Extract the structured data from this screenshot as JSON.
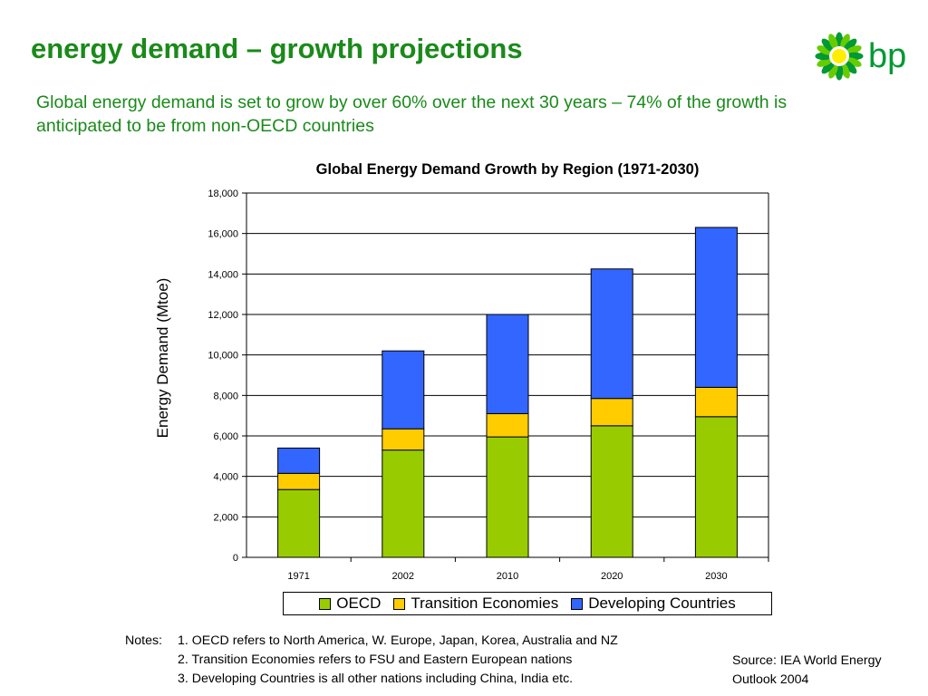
{
  "slide": {
    "title": "energy demand – growth projections",
    "subtitle": "Global energy demand is set to grow by over 60% over the next 30 years – 74% of the growth is anticipated to be from non-OECD countries",
    "logo_text": "bp"
  },
  "chart_data": {
    "type": "bar",
    "stacked": true,
    "title": "Global Energy Demand Growth by Region (1971-2030)",
    "xlabel": "",
    "ylabel": "Energy Demand (Mtoe)",
    "ylim": [
      0,
      18000
    ],
    "yticks": [
      "0",
      "2,000",
      "4,000",
      "6,000",
      "8,000",
      "10,000",
      "12,000",
      "14,000",
      "16,000",
      "18,000"
    ],
    "ytick_values": [
      0,
      2000,
      4000,
      6000,
      8000,
      10000,
      12000,
      14000,
      16000,
      18000
    ],
    "categories": [
      "1971",
      "2002",
      "2010",
      "2020",
      "2030"
    ],
    "series": [
      {
        "name": "OECD",
        "color": "#99cc00",
        "values": [
          3350,
          5300,
          5950,
          6500,
          6950
        ]
      },
      {
        "name": "Transition Economies",
        "color": "#ffcc00",
        "values": [
          800,
          1050,
          1150,
          1350,
          1450
        ]
      },
      {
        "name": "Developing Countries",
        "color": "#3366ff",
        "values": [
          1250,
          3850,
          4900,
          6400,
          7900
        ]
      }
    ],
    "grid": true,
    "legend_position": "bottom"
  },
  "notes": {
    "heading": "Notes:",
    "lines": [
      "1. OECD refers to North America, W. Europe, Japan, Korea, Australia and NZ",
      "2. Transition Economies refers to FSU and Eastern European nations",
      "3. Developing Countries is all other nations including China, India etc."
    ]
  },
  "source": {
    "line1": "Source: IEA World Energy",
    "line2": "Outlook 2004"
  },
  "colors": {
    "title_green": "#1a8a1a",
    "bp_green": "#009933",
    "bp_yellow": "#ffee00"
  }
}
